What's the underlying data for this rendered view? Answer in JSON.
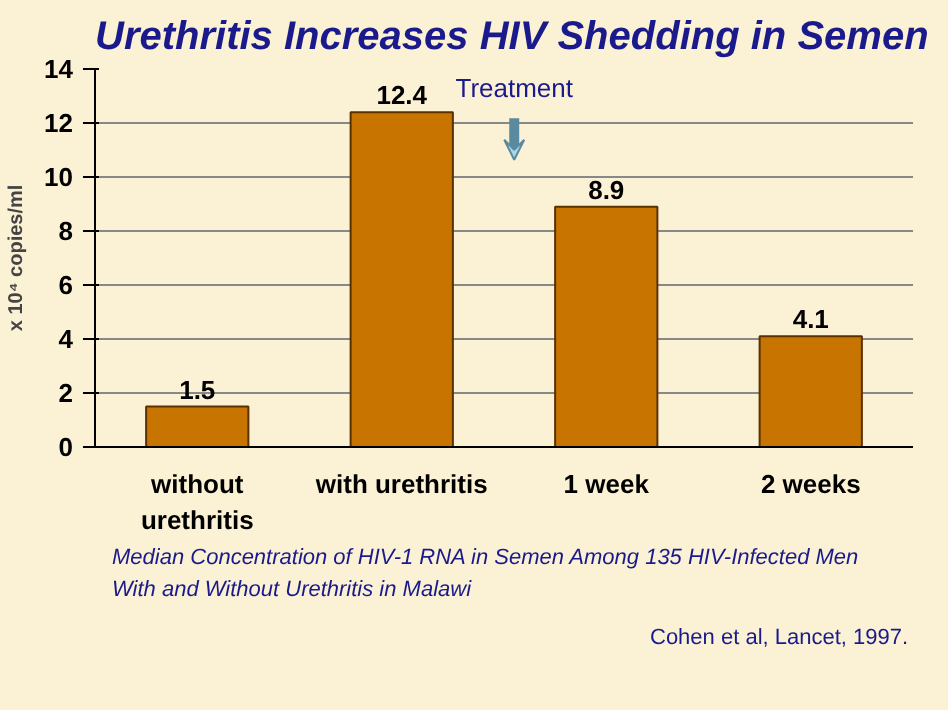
{
  "chart_data": {
    "type": "bar",
    "title": "Urethritis Increases HIV Shedding in Semen",
    "ylabel": "x 10⁴ copies/ml",
    "categories": [
      "without\nurethritis",
      "with urethritis",
      "1 week",
      "2 weeks"
    ],
    "values": [
      1.5,
      12.4,
      8.9,
      4.1
    ],
    "color": "#c87400",
    "ylim": [
      0,
      14
    ],
    "yticks": [
      0,
      2,
      4,
      6,
      8,
      10,
      12,
      14
    ],
    "grid": "y",
    "data_labels": true,
    "annotations": [
      "Treatment",
      "Median Concentration of HIV-1 RNA in Semen  Among 135 HIV-Infected Men  With and Without Urethritis in Malawi",
      "Cohen et al, Lancet, 1997."
    ]
  }
}
